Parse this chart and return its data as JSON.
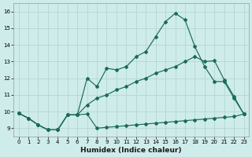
{
  "xlabel": "Humidex (Indice chaleur)",
  "bg_color": "#ceecea",
  "grid_color": "#b8d8d6",
  "line_color": "#1a6b5a",
  "xlim": [
    -0.5,
    23.5
  ],
  "ylim": [
    8.5,
    16.5
  ],
  "xticks": [
    0,
    1,
    2,
    3,
    4,
    5,
    6,
    7,
    8,
    9,
    10,
    11,
    12,
    13,
    14,
    15,
    16,
    17,
    18,
    19,
    20,
    21,
    22,
    23
  ],
  "yticks": [
    9,
    10,
    11,
    12,
    13,
    14,
    15,
    16
  ],
  "line1_x": [
    0,
    1,
    2,
    3,
    4,
    5,
    6,
    7,
    8,
    9,
    10,
    11,
    12,
    13,
    14,
    15,
    16,
    17,
    18,
    19,
    20,
    21,
    22,
    23
  ],
  "line1_y": [
    9.9,
    9.6,
    9.2,
    8.9,
    8.9,
    9.8,
    9.8,
    12.0,
    11.5,
    12.6,
    12.5,
    12.7,
    13.3,
    13.6,
    14.5,
    15.4,
    15.9,
    15.5,
    13.9,
    12.7,
    11.8,
    11.8,
    10.8,
    9.85
  ],
  "line2_x": [
    0,
    1,
    2,
    3,
    4,
    5,
    6,
    7,
    8,
    9,
    10,
    11,
    12,
    13,
    14,
    15,
    16,
    17,
    18,
    19,
    20,
    21,
    22,
    23
  ],
  "line2_y": [
    9.9,
    9.6,
    9.2,
    8.9,
    8.9,
    9.8,
    9.8,
    10.4,
    10.8,
    11.0,
    11.3,
    11.5,
    11.8,
    12.0,
    12.3,
    12.5,
    12.7,
    13.0,
    13.3,
    13.0,
    13.05,
    11.9,
    10.9,
    9.85
  ],
  "line3_x": [
    0,
    1,
    2,
    3,
    4,
    5,
    6,
    7,
    8,
    9,
    10,
    11,
    12,
    13,
    14,
    15,
    16,
    17,
    18,
    19,
    20,
    21,
    22,
    23
  ],
  "line3_y": [
    9.9,
    9.6,
    9.2,
    8.9,
    8.9,
    9.8,
    9.8,
    9.85,
    9.0,
    9.05,
    9.1,
    9.15,
    9.2,
    9.25,
    9.3,
    9.35,
    9.4,
    9.45,
    9.5,
    9.55,
    9.6,
    9.65,
    9.7,
    9.85
  ]
}
